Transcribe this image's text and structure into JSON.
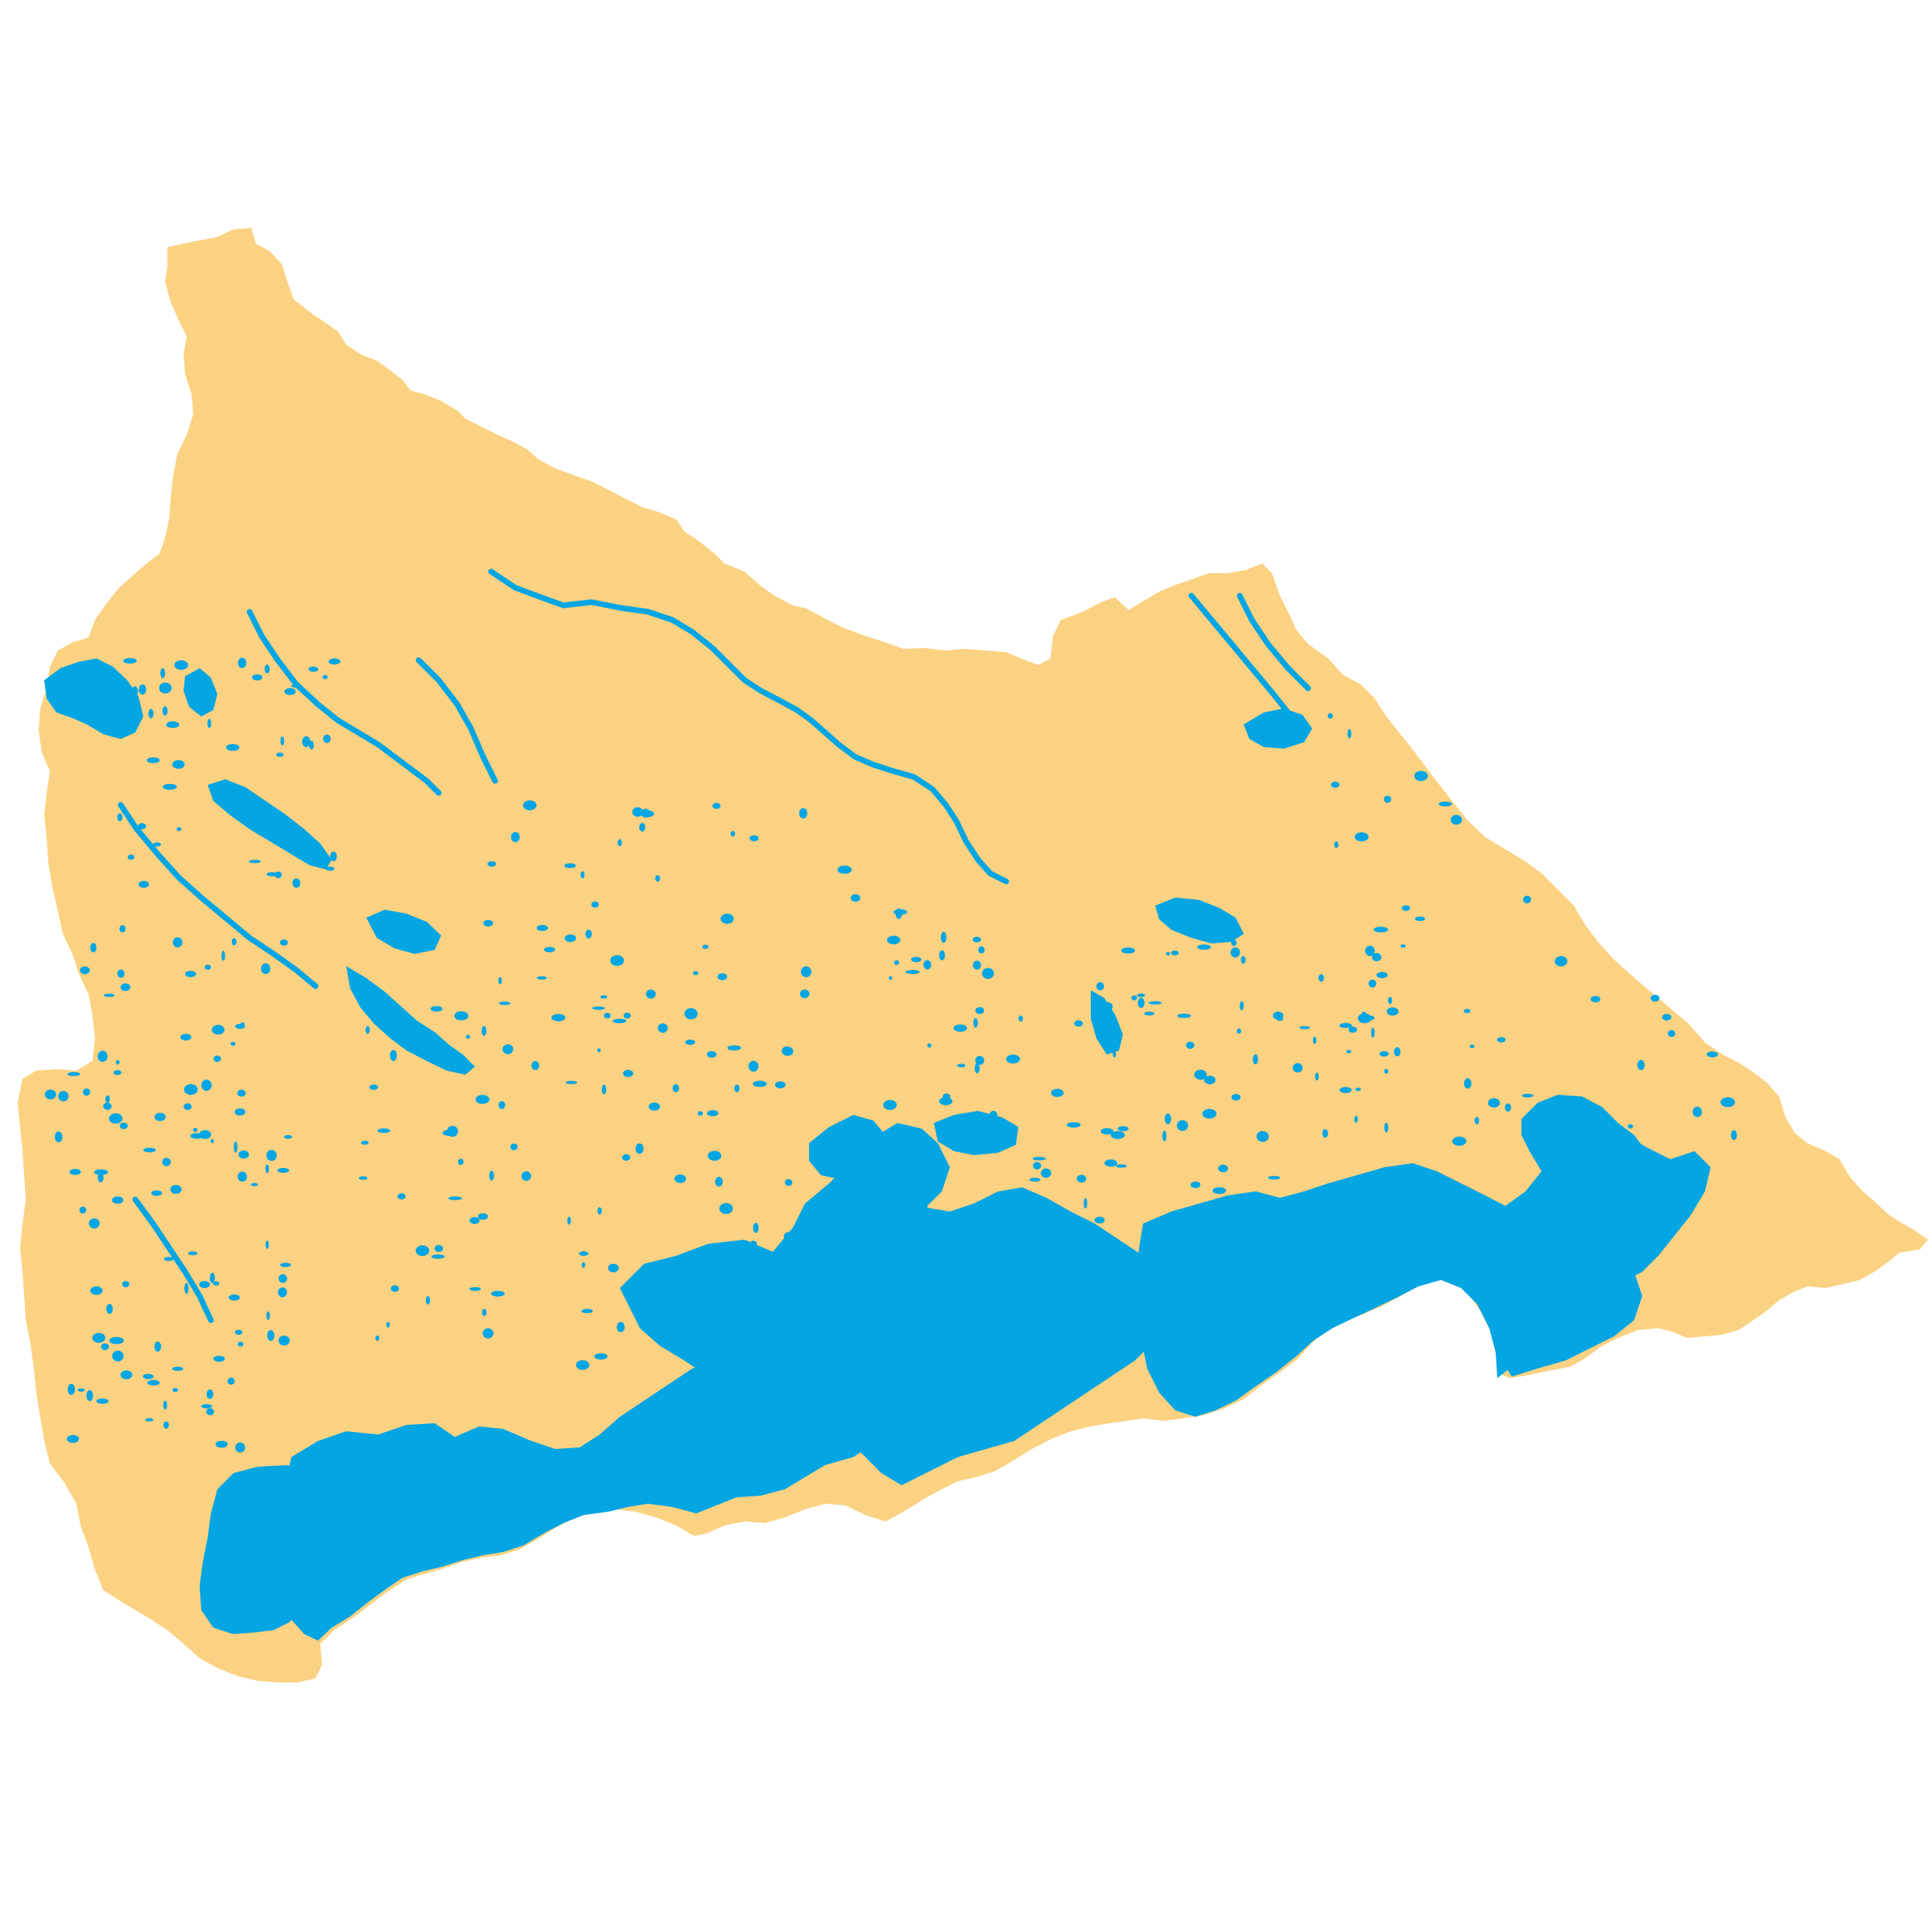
{
  "map": {
    "colors": {
      "land": "#fbd282",
      "water": "#03a5e2",
      "background": "#ffffff"
    },
    "layers": [
      "land-region",
      "water-bodies"
    ],
    "labels": []
  }
}
